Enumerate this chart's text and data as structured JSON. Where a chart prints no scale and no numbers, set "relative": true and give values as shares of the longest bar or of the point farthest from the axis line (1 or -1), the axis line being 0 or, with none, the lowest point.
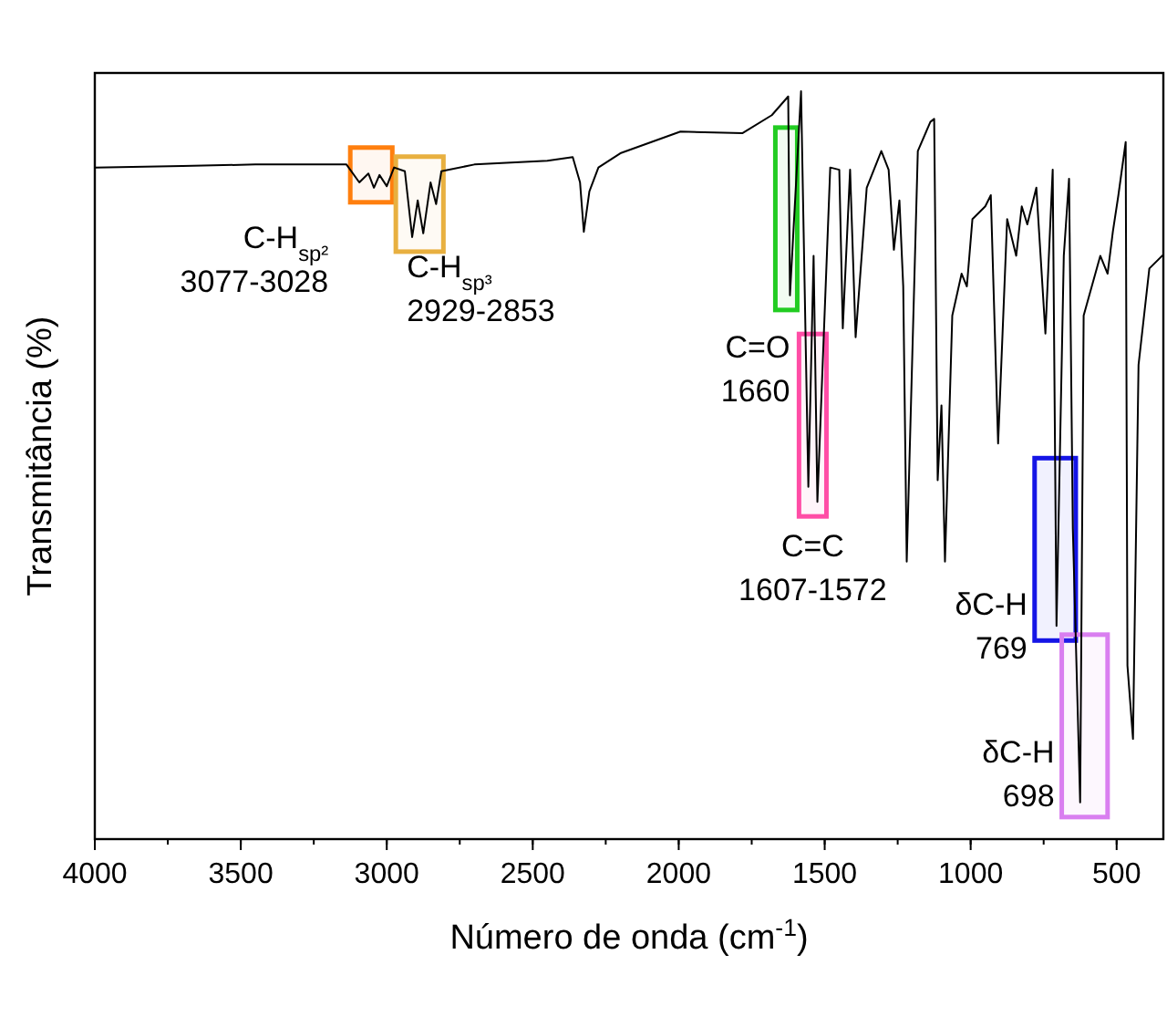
{
  "chart_data": {
    "type": "line",
    "relative": true,
    "xlabel": "Número de onda (cm$^{-1}$)",
    "ylabel": "Transmitância (%)",
    "xlim": [
      4000,
      340
    ],
    "xticks": [
      4000,
      3500,
      3000,
      2500,
      2000,
      1500,
      1000,
      500
    ],
    "tick_labels": "x",
    "grid": false,
    "line_style": "solid",
    "series": [
      {
        "color": "#000000",
        "x": [
          4000,
          3700,
          3450,
          3138,
          3094,
          3063,
          3044,
          3025,
          3000,
          2975,
          2938,
          2913,
          2894,
          2875,
          2850,
          2831,
          2813,
          2700,
          2450,
          2363,
          2338,
          2325,
          2306,
          2275,
          2200,
          1994,
          1781,
          1681,
          1625,
          1619,
          1581,
          1556,
          1538,
          1525,
          1481,
          1450,
          1438,
          1413,
          1394,
          1356,
          1306,
          1281,
          1263,
          1244,
          1231,
          1219,
          1181,
          1138,
          1125,
          1113,
          1100,
          1088,
          1063,
          1031,
          1013,
          994,
          950,
          931,
          906,
          875,
          844,
          825,
          806,
          775,
          744,
          719,
          706,
          681,
          663,
          650,
          625,
          613,
          556,
          531,
          513,
          494,
          469,
          463,
          444,
          425,
          388,
          344
        ],
        "values": [
          0.898,
          0.9,
          0.902,
          0.902,
          0.878,
          0.89,
          0.871,
          0.888,
          0.873,
          0.898,
          0.893,
          0.805,
          0.854,
          0.81,
          0.878,
          0.849,
          0.893,
          0.902,
          0.907,
          0.912,
          0.878,
          0.812,
          0.866,
          0.898,
          0.917,
          0.946,
          0.944,
          0.968,
          0.993,
          0.727,
          1.0,
          0.471,
          0.78,
          0.451,
          0.898,
          0.895,
          0.683,
          0.895,
          0.671,
          0.871,
          0.92,
          0.895,
          0.788,
          0.854,
          0.739,
          0.371,
          0.92,
          0.959,
          0.963,
          0.48,
          0.58,
          0.371,
          0.7,
          0.756,
          0.739,
          0.829,
          0.846,
          0.861,
          0.529,
          0.829,
          0.78,
          0.846,
          0.822,
          0.871,
          0.676,
          0.895,
          0.285,
          0.78,
          0.883,
          0.415,
          0.049,
          0.7,
          0.78,
          0.756,
          0.812,
          0.861,
          0.932,
          0.232,
          0.134,
          0.634,
          0.763,
          0.78
        ]
      }
    ],
    "bands": [
      {
        "axis": "x",
        "from": 3125,
        "to": 2981,
        "color": "#ff7f0e",
        "label": "C-H$_{sp²}$\n3077-3028"
      },
      {
        "axis": "x",
        "from": 2969,
        "to": 2806,
        "color": "#e8b040",
        "label": "C-H$_{sp³}$\n2929-2853"
      },
      {
        "axis": "x",
        "from": 1669,
        "to": 1594,
        "color": "#22cc22",
        "label": "C=O\n1660"
      },
      {
        "axis": "x",
        "from": 1588,
        "to": 1494,
        "color": "#ff4da6",
        "label": "C=C\n1607-1572"
      },
      {
        "axis": "x",
        "from": 781,
        "to": 640,
        "color": "#1515e6",
        "label": "δC-H\n769"
      },
      {
        "axis": "x",
        "from": 688,
        "to": 531,
        "color": "#d97ff0",
        "label": "δC-H\n698"
      }
    ]
  }
}
